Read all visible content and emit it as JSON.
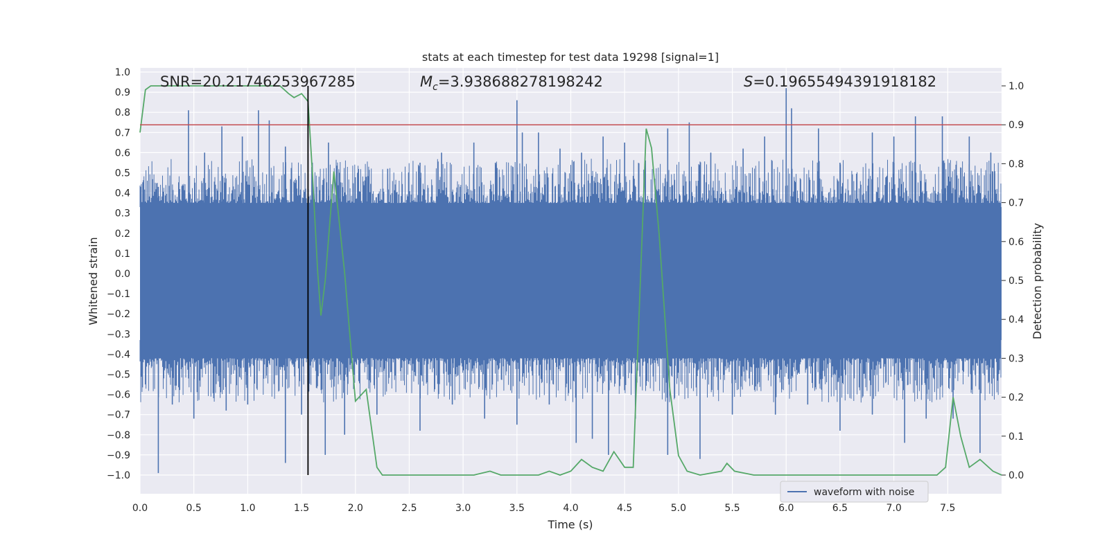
{
  "chart_data": {
    "type": "line",
    "title": "stats at each timestep for test data 19298 [signal=1]",
    "xlabel": "Time (s)",
    "ylabel": "Whitened strain",
    "y2label": "Detection probability",
    "xlim": [
      0,
      8
    ],
    "ylim": [
      -1.1,
      1.05
    ],
    "y2lim": [
      -0.05,
      1.05
    ],
    "xticks": [
      "0.0",
      "0.5",
      "1.0",
      "1.5",
      "2.0",
      "2.5",
      "3.0",
      "3.5",
      "4.0",
      "4.5",
      "5.0",
      "5.5",
      "6.0",
      "6.5",
      "7.0",
      "7.5"
    ],
    "yticks": [
      "1.0",
      "0.9",
      "0.8",
      "0.7",
      "0.6",
      "0.5",
      "0.4",
      "0.3",
      "0.2",
      "0.1",
      "0.0",
      "−0.1",
      "−0.2",
      "−0.3",
      "−0.4",
      "−0.5",
      "−0.6",
      "−0.7",
      "−0.8",
      "−0.9",
      "−1.0"
    ],
    "y2ticks": [
      "1.0",
      "0.9",
      "0.8",
      "0.7",
      "0.6",
      "0.5",
      "0.4",
      "0.3",
      "0.2",
      "0.1",
      "0.0"
    ],
    "grid": true,
    "legend": {
      "position": "bottom-right",
      "entries": [
        "waveform with noise"
      ]
    },
    "annotations": {
      "snr": "SNR=20.21746253967285",
      "mc_symbol": "M",
      "mc_sub": "c",
      "mc_value": "=3.938688278198242",
      "s_symbol": "S",
      "s_value": "=0.19655494391918182"
    },
    "threshold": {
      "value": 0.9,
      "color": "#c44e52"
    },
    "marker_time": 1.56,
    "colors": {
      "waveform": "#4c72b0",
      "probability": "#55a868",
      "marker": "#000000",
      "background": "#eaeaf2"
    },
    "waveform": {
      "name": "waveform with noise",
      "envelope_upper": 0.35,
      "envelope_lower": -0.42,
      "dense_band": 0.33,
      "peaks": [
        [
          0.17,
          0.43
        ],
        [
          0.45,
          0.81
        ],
        [
          0.6,
          0.6
        ],
        [
          0.76,
          0.73
        ],
        [
          0.95,
          0.68
        ],
        [
          1.1,
          0.81
        ],
        [
          1.2,
          0.76
        ],
        [
          1.35,
          0.63
        ],
        [
          1.6,
          0.55
        ],
        [
          1.75,
          0.65
        ],
        [
          1.85,
          0.5
        ],
        [
          2.1,
          0.48
        ],
        [
          2.3,
          0.52
        ],
        [
          2.6,
          0.55
        ],
        [
          2.8,
          0.6
        ],
        [
          3.1,
          0.65
        ],
        [
          3.3,
          0.55
        ],
        [
          3.5,
          0.86
        ],
        [
          3.55,
          0.7
        ],
        [
          3.7,
          0.7
        ],
        [
          3.9,
          0.62
        ],
        [
          4.1,
          0.6
        ],
        [
          4.3,
          0.68
        ],
        [
          4.5,
          0.65
        ],
        [
          4.9,
          0.72
        ],
        [
          5.1,
          0.75
        ],
        [
          5.3,
          0.6
        ],
        [
          5.6,
          0.62
        ],
        [
          5.8,
          0.68
        ],
        [
          6.0,
          0.92
        ],
        [
          6.05,
          0.82
        ],
        [
          6.3,
          0.72
        ],
        [
          6.5,
          0.55
        ],
        [
          6.8,
          0.7
        ],
        [
          7.0,
          0.68
        ],
        [
          7.2,
          0.78
        ],
        [
          7.45,
          0.78
        ],
        [
          7.7,
          0.68
        ],
        [
          7.9,
          0.6
        ]
      ],
      "troughs": [
        [
          0.17,
          -0.99
        ],
        [
          0.3,
          -0.65
        ],
        [
          0.5,
          -0.72
        ],
        [
          0.8,
          -0.68
        ],
        [
          1.0,
          -0.65
        ],
        [
          1.35,
          -0.94
        ],
        [
          1.5,
          -0.7
        ],
        [
          1.72,
          -0.9
        ],
        [
          1.9,
          -0.8
        ],
        [
          2.2,
          -0.7
        ],
        [
          2.6,
          -0.78
        ],
        [
          2.9,
          -0.65
        ],
        [
          3.2,
          -0.72
        ],
        [
          3.5,
          -0.75
        ],
        [
          3.8,
          -0.65
        ],
        [
          4.05,
          -0.84
        ],
        [
          4.2,
          -0.82
        ],
        [
          4.35,
          -0.9
        ],
        [
          4.6,
          -0.72
        ],
        [
          4.9,
          -0.9
        ],
        [
          5.2,
          -0.92
        ],
        [
          5.5,
          -0.7
        ],
        [
          5.9,
          -0.7
        ],
        [
          6.2,
          -0.65
        ],
        [
          6.5,
          -0.78
        ],
        [
          6.8,
          -0.7
        ],
        [
          7.1,
          -0.84
        ],
        [
          7.3,
          -0.72
        ],
        [
          7.55,
          -0.72
        ],
        [
          7.8,
          -0.89
        ]
      ]
    },
    "probability": {
      "x": [
        0,
        0.05,
        0.1,
        0.2,
        0.5,
        1.0,
        1.3,
        1.38,
        1.43,
        1.5,
        1.56,
        1.6,
        1.65,
        1.68,
        1.72,
        1.8,
        1.9,
        2.0,
        2.1,
        2.2,
        2.25,
        2.3,
        2.5,
        2.7,
        2.9,
        3.1,
        3.25,
        3.35,
        3.5,
        3.7,
        3.8,
        3.9,
        4.0,
        4.1,
        4.2,
        4.3,
        4.4,
        4.5,
        4.58,
        4.7,
        4.75,
        4.82,
        4.92,
        5.0,
        5.08,
        5.2,
        5.4,
        5.45,
        5.52,
        5.7,
        6.0,
        6.5,
        6.8,
        7.0,
        7.2,
        7.4,
        7.48,
        7.55,
        7.62,
        7.7,
        7.8,
        7.92,
        8.0
      ],
      "y": [
        0.88,
        0.99,
        1.0,
        1.0,
        1.0,
        1.0,
        1.0,
        0.98,
        0.97,
        0.98,
        0.96,
        0.78,
        0.52,
        0.41,
        0.5,
        0.78,
        0.52,
        0.19,
        0.22,
        0.02,
        0.0,
        0.0,
        0.0,
        0.0,
        0.0,
        0.0,
        0.01,
        0.0,
        0.0,
        0.0,
        0.01,
        0.0,
        0.01,
        0.04,
        0.02,
        0.01,
        0.06,
        0.02,
        0.02,
        0.89,
        0.84,
        0.62,
        0.22,
        0.05,
        0.01,
        0.0,
        0.01,
        0.03,
        0.01,
        0.0,
        0.0,
        0.0,
        0.0,
        0.0,
        0.0,
        0.0,
        0.02,
        0.2,
        0.1,
        0.02,
        0.04,
        0.01,
        0.0
      ]
    }
  }
}
